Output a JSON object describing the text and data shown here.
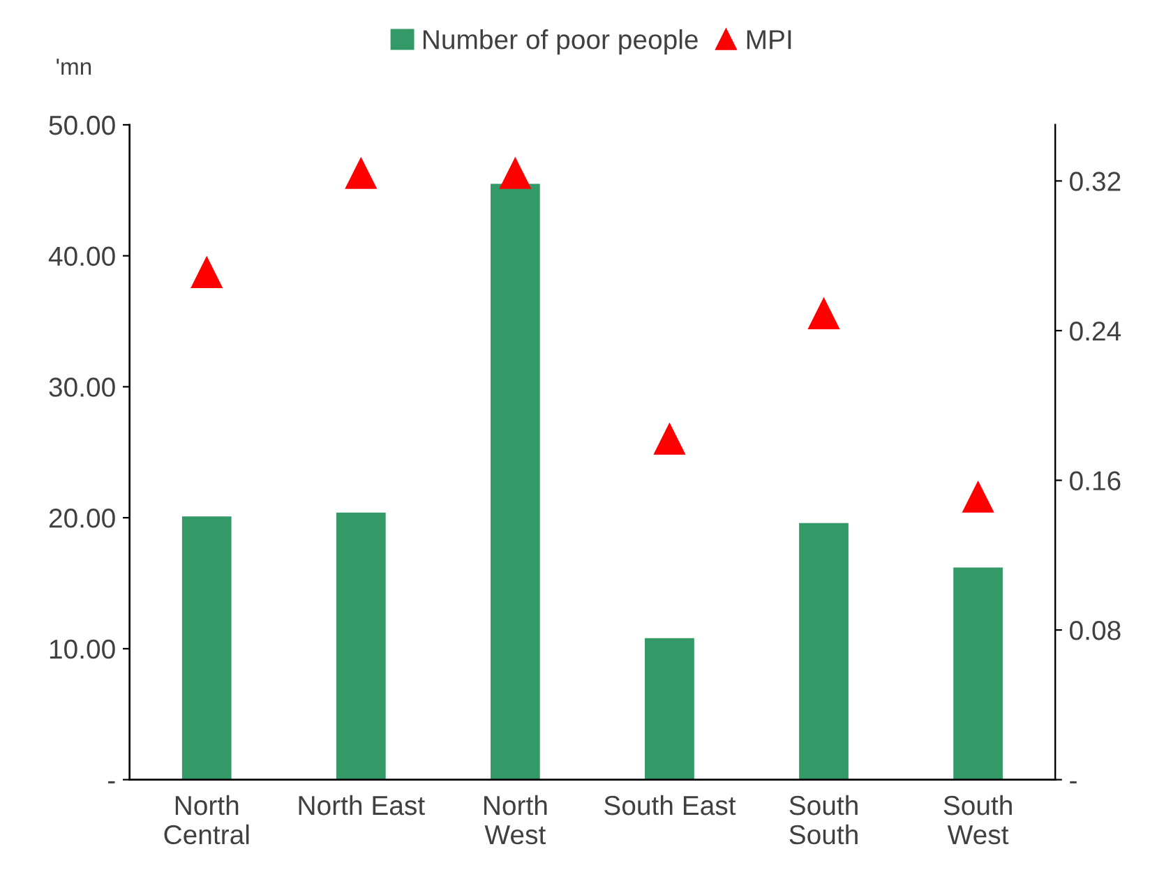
{
  "chart_data": {
    "type": "bar",
    "categories": [
      "North\nCentral",
      "North East",
      "North\nWest",
      "South East",
      "South\nSouth",
      "South\nWest"
    ],
    "series": [
      {
        "name": "Number of poor people",
        "color": "#339966",
        "values": [
          20.1,
          20.4,
          45.5,
          10.8,
          19.6,
          16.2
        ]
      },
      {
        "name": "MPI",
        "type": "scatter",
        "axis": "y2",
        "color": "#ff0000",
        "marker": "triangle",
        "values": [
          0.271,
          0.324,
          0.324,
          0.182,
          0.249,
          0.151
        ]
      }
    ],
    "ylim": [
      0,
      50
    ],
    "yticks": [
      {
        "value": 0,
        "label": "-"
      },
      {
        "value": 10,
        "label": "10.00"
      },
      {
        "value": 20,
        "label": "20.00"
      },
      {
        "value": 30,
        "label": "30.00"
      },
      {
        "value": 40,
        "label": "40.00"
      },
      {
        "value": 50,
        "label": "50.00"
      }
    ],
    "y2lim": [
      0,
      0.35
    ],
    "y2ticks": [
      {
        "value": 0,
        "label": "-"
      },
      {
        "value": 0.08,
        "label": "0.08"
      },
      {
        "value": 0.16,
        "label": "0.16"
      },
      {
        "value": 0.24,
        "label": "0.24"
      },
      {
        "value": 0.32,
        "label": "0.32"
      }
    ],
    "annotations": [
      "'mn"
    ],
    "legend": "top",
    "grid": false
  }
}
